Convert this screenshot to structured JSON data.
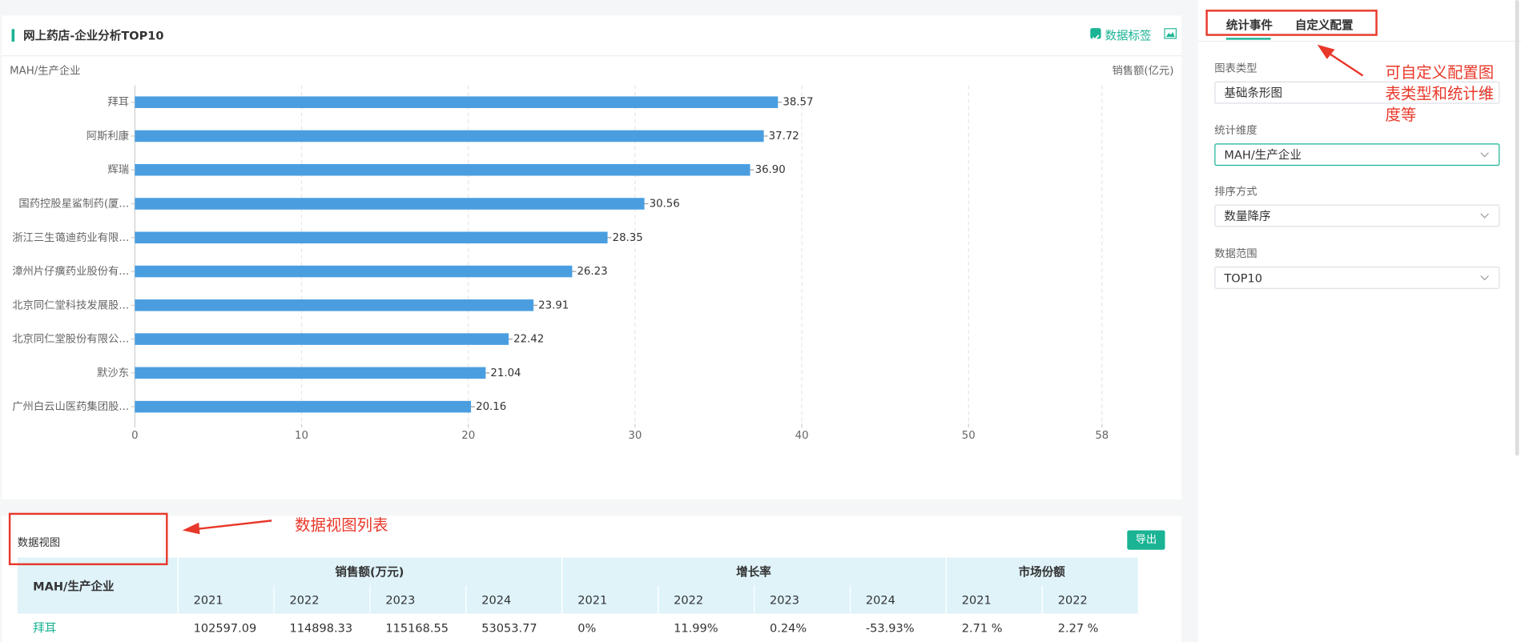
{
  "header": {
    "title": "网上药店-企业分析TOP10",
    "data_label_toggle": "数据标签"
  },
  "chart_data": {
    "type": "bar",
    "orientation": "horizontal",
    "y_axis_label": "MAH/生产企业",
    "x_axis_label": "销售额(亿元)",
    "categories": [
      "拜耳",
      "阿斯利康",
      "辉瑞",
      "国药控股星鲨制药(厦...",
      "浙江三生蔼迪药业有限...",
      "漳州片仔癀药业股份有...",
      "北京同仁堂科技发展股...",
      "北京同仁堂股份有限公...",
      "默沙东",
      "广州白云山医药集团股..."
    ],
    "values": [
      38.57,
      37.72,
      36.9,
      30.56,
      28.35,
      26.23,
      23.91,
      22.42,
      21.04,
      20.16
    ],
    "value_labels": [
      "38.57",
      "37.72",
      "36.90",
      "30.56",
      "28.35",
      "26.23",
      "23.91",
      "22.42",
      "21.04",
      "20.16"
    ],
    "color": "#4a9ee0",
    "xlim": [
      0,
      58
    ],
    "xticks": [
      0,
      10,
      20,
      30,
      40,
      50,
      58
    ],
    "grid": true,
    "show_value_labels": true
  },
  "table_panel": {
    "title": "数据视图",
    "export": "导出",
    "table": {
      "row_header": "MAH/生产企业",
      "groups": [
        {
          "name": "销售额(万元)",
          "years": [
            "2021",
            "2022",
            "2023",
            "2024"
          ]
        },
        {
          "name": "增长率",
          "years": [
            "2021",
            "2022",
            "2023",
            "2024"
          ]
        },
        {
          "name": "市场份额",
          "years": [
            "2021",
            "2022"
          ]
        }
      ],
      "rows": [
        [
          "拜耳",
          "102597.09",
          "114898.33",
          "115168.55",
          "53053.77",
          "0%",
          "11.99%",
          "0.24%",
          "-53.93%",
          "2.71 %",
          "2.27 %"
        ]
      ]
    }
  },
  "config_panel": {
    "tabs": [
      "统计事件",
      "自定义配置"
    ],
    "fields": [
      {
        "label": "图表类型",
        "value": "基础条形图"
      },
      {
        "label": "统计维度",
        "value": "MAH/生产企业"
      },
      {
        "label": "排序方式",
        "value": "数量降序"
      },
      {
        "label": "数据范围",
        "value": "TOP10"
      }
    ]
  },
  "annotations": [
    "数据视图列表",
    "可自定义配置图表类型和统计维度等"
  ]
}
